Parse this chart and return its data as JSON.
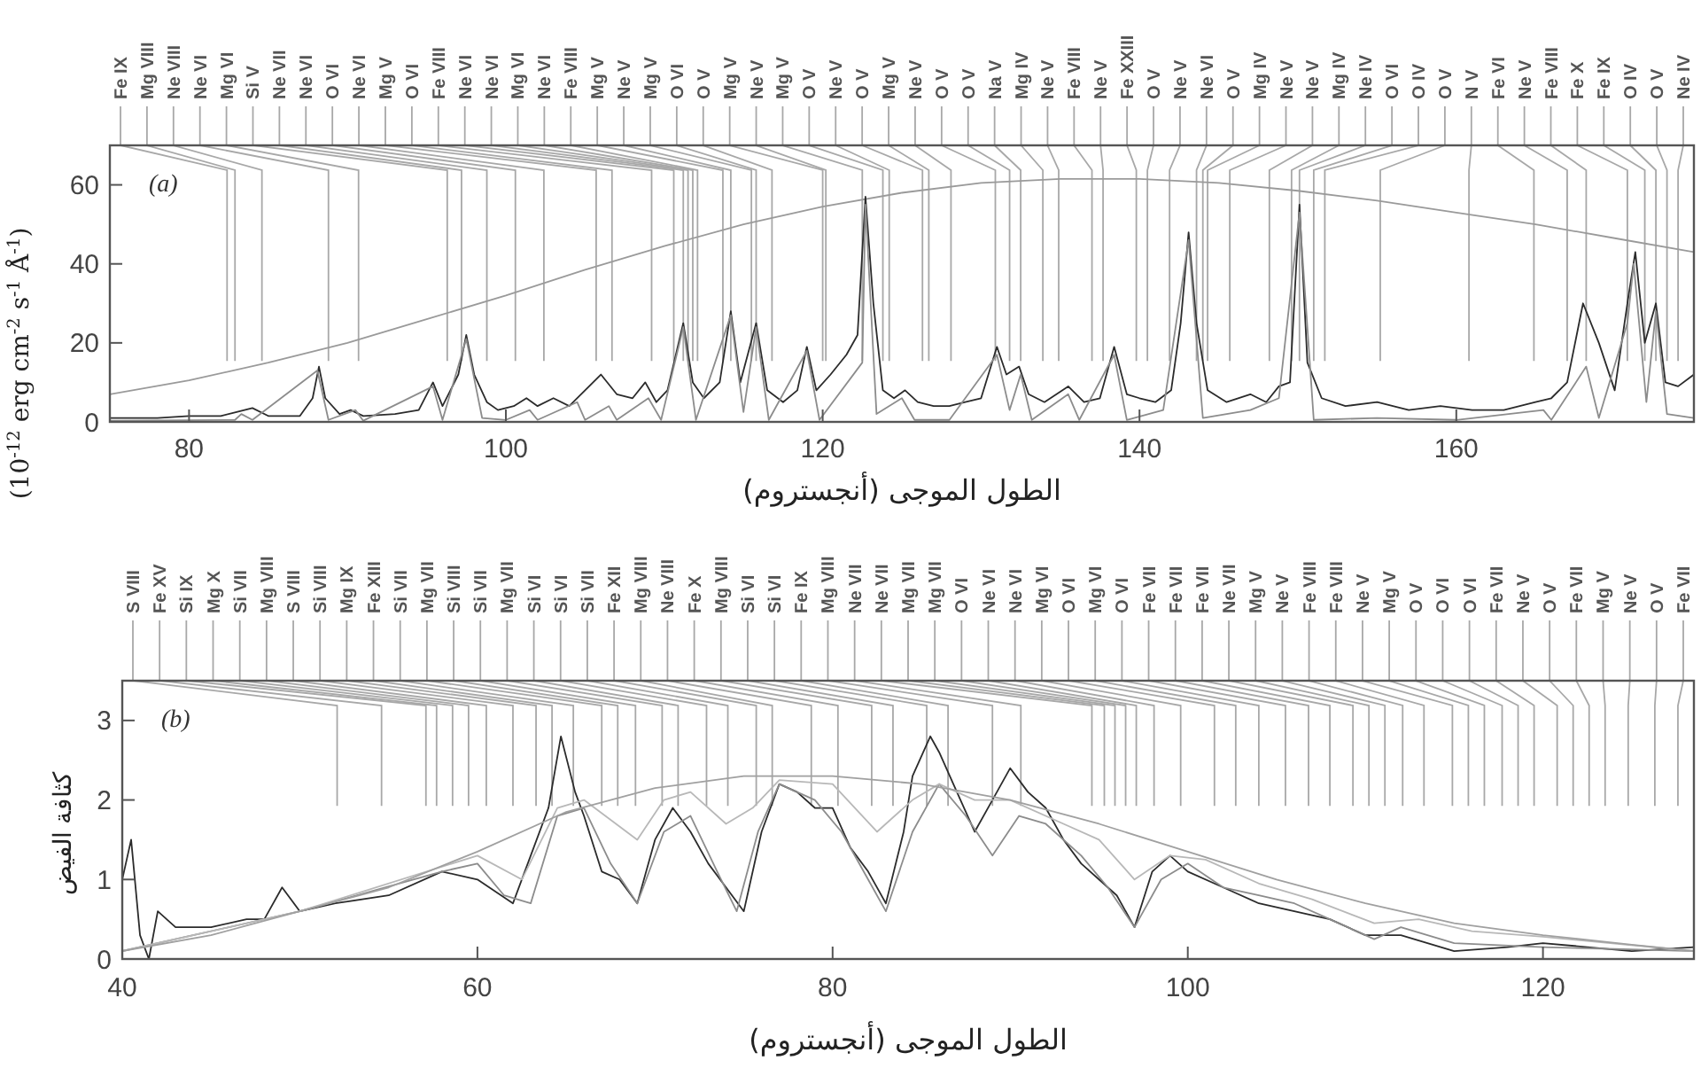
{
  "chart_data": [
    {
      "type": "line",
      "xlabel": "الطول الموجى (أنجستروم)",
      "ylabel": "(10$^{-12}$ erg cm$^{-2}$ s$^{-1}$ Å$^{-1}$)",
      "xlim": [
        75,
        175
      ],
      "xticks": [
        80,
        100,
        120,
        140,
        160
      ],
      "ylim": [
        0,
        70
      ],
      "yticks": [
        0,
        20,
        40,
        60
      ],
      "annotations": [
        "(a)"
      ],
      "series": [
        {
          "color": "#9a9a9a",
          "x": [
            75,
            80,
            85,
            90,
            95,
            100,
            105,
            110,
            115,
            120,
            125,
            130,
            135,
            140,
            145,
            150,
            155,
            160,
            165,
            170,
            175
          ],
          "values": [
            7,
            10.5,
            15,
            20,
            26,
            32,
            38.5,
            44.5,
            50,
            54.5,
            58,
            60.5,
            61.5,
            61.5,
            60.5,
            58.5,
            56,
            53,
            50,
            46.5,
            43
          ]
        },
        {
          "color": "#2b2b2b",
          "x": [
            75,
            78,
            80,
            82,
            83,
            84,
            85,
            87,
            87.8,
            88.2,
            88.6,
            89.5,
            90.2,
            91,
            93,
            94.5,
            95.4,
            96,
            97,
            97.5,
            98,
            98.8,
            99.5,
            100.5,
            101.3,
            102,
            103,
            104,
            105,
            106,
            107,
            108,
            108.8,
            109.5,
            110.2,
            111.2,
            111.8,
            112.5,
            113.5,
            114.2,
            114.8,
            115.8,
            116.5,
            117.5,
            118.4,
            119,
            119.6,
            120.5,
            121.5,
            122.2,
            122.7,
            123.2,
            123.8,
            124.5,
            125.2,
            126,
            127,
            128,
            129,
            130,
            131,
            131.6,
            132.4,
            133,
            134,
            135.5,
            136.5,
            137.5,
            138.4,
            139.2,
            140,
            141,
            142,
            142.6,
            143.1,
            143.6,
            144.3,
            145.5,
            147,
            148,
            148.8,
            149.5,
            150.1,
            150.6,
            151.5,
            153,
            155,
            157,
            159,
            161,
            163,
            165,
            166,
            167,
            168,
            169,
            170,
            170.8,
            171.3,
            171.9,
            172.6,
            173.2,
            174,
            175
          ],
          "values": [
            1,
            1,
            1.5,
            1.5,
            2.5,
            3.5,
            1.5,
            1.5,
            6,
            14,
            6,
            2,
            3,
            1.5,
            2,
            3,
            10,
            4,
            12,
            22,
            12,
            5,
            3,
            4,
            6,
            4,
            6,
            4,
            8,
            12,
            7,
            6,
            10,
            5,
            8,
            25,
            10,
            6,
            10,
            28,
            10,
            25,
            8,
            5,
            8,
            19,
            8,
            12,
            17,
            22,
            57,
            30,
            8,
            6,
            8,
            5,
            4,
            4,
            5,
            6,
            19,
            12,
            14,
            7,
            5,
            9,
            5,
            6,
            19,
            7,
            6,
            5,
            8,
            25,
            48,
            25,
            8,
            5,
            7,
            5,
            9,
            10,
            55,
            15,
            6,
            4,
            5,
            3,
            4,
            3,
            3,
            5,
            6,
            10,
            30,
            20,
            8,
            30,
            43,
            20,
            30,
            10,
            9,
            12
          ]
        },
        {
          "color": "#8c8c8c",
          "x": [
            75,
            82.9,
            83.3,
            84,
            88.1,
            88.8,
            90.5,
            91,
            95.4,
            96,
            97.5,
            98.5,
            100,
            101.5,
            102,
            104.5,
            105,
            106.5,
            107,
            109,
            109.8,
            111.2,
            112,
            114.2,
            115,
            115.8,
            116.6,
            119,
            119.8,
            122.5,
            122.7,
            123.4,
            125,
            125.8,
            128,
            131,
            131.8,
            132.5,
            133.2,
            135.5,
            136.2,
            138.4,
            139.2,
            141.5,
            143.1,
            144,
            147,
            148.8,
            150.1,
            151,
            155,
            160,
            165.5,
            166,
            168.2,
            169,
            170.8,
            171.2,
            172,
            172.6,
            173.3,
            175
          ],
          "values": [
            0.3,
            0.5,
            2,
            0.5,
            13,
            0.5,
            3,
            0.3,
            9,
            0.5,
            21,
            1,
            0.5,
            3,
            0.5,
            5,
            0.5,
            4,
            0.5,
            6,
            0.5,
            24,
            0.5,
            27,
            2.5,
            24,
            0.5,
            18,
            0.5,
            15,
            55,
            2,
            6,
            0.5,
            0.5,
            17,
            3,
            12,
            0.5,
            7,
            0.5,
            17,
            0.5,
            3,
            46,
            1,
            3,
            6,
            53,
            0.5,
            1,
            0.5,
            3,
            0.5,
            14,
            1,
            25,
            40,
            5,
            28,
            2,
            1
          ]
        }
      ],
      "ref_lines": [
        {
          "axis": "x",
          "value": 82.4,
          "label": "Fe IX"
        },
        {
          "axis": "x",
          "value": 82.9,
          "label": "Mg VIII"
        },
        {
          "axis": "x",
          "value": 84.6,
          "label": "Ne VIII"
        },
        {
          "axis": "x",
          "value": 88.8,
          "label": "Ne VI"
        },
        {
          "axis": "x",
          "value": 90.7,
          "label": "Mg VI"
        },
        {
          "axis": "x",
          "value": 96.3,
          "label": "Si V"
        },
        {
          "axis": "x",
          "value": 97.2,
          "label": "Ne VII"
        },
        {
          "axis": "x",
          "value": 98.8,
          "label": "Ne VI"
        },
        {
          "axis": "x",
          "value": 100.6,
          "label": "O VI"
        },
        {
          "axis": "x",
          "value": 102.4,
          "label": "Ne VI"
        },
        {
          "axis": "x",
          "value": 105.7,
          "label": "Mg V"
        },
        {
          "axis": "x",
          "value": 106.7,
          "label": "O VI"
        },
        {
          "axis": "x",
          "value": 109.2,
          "label": "Fe VIII"
        },
        {
          "axis": "x",
          "value": 110.6,
          "label": "Ne VI"
        },
        {
          "axis": "x",
          "value": 111.2,
          "label": "Ne VI"
        },
        {
          "axis": "x",
          "value": 111.5,
          "label": "Mg VI"
        },
        {
          "axis": "x",
          "value": 111.8,
          "label": "Ne VI"
        },
        {
          "axis": "x",
          "value": 112.1,
          "label": "Fe VIII"
        },
        {
          "axis": "x",
          "value": 113.7,
          "label": "Mg V"
        },
        {
          "axis": "x",
          "value": 114.2,
          "label": "Ne V"
        },
        {
          "axis": "x",
          "value": 115.5,
          "label": "Mg V"
        },
        {
          "axis": "x",
          "value": 115.8,
          "label": "O VI"
        },
        {
          "axis": "x",
          "value": 116.8,
          "label": "O V"
        },
        {
          "axis": "x",
          "value": 120.0,
          "label": "Mg V"
        },
        {
          "axis": "x",
          "value": 120.2,
          "label": "Ne V"
        },
        {
          "axis": "x",
          "value": 122.5,
          "label": "Mg V"
        },
        {
          "axis": "x",
          "value": 123.8,
          "label": "O V"
        },
        {
          "axis": "x",
          "value": 124.2,
          "label": "Ne V"
        },
        {
          "axis": "x",
          "value": 126.3,
          "label": "O V"
        },
        {
          "axis": "x",
          "value": 126.7,
          "label": "Mg V"
        },
        {
          "axis": "x",
          "value": 128.1,
          "label": "Ne V"
        },
        {
          "axis": "x",
          "value": 130.9,
          "label": "O V"
        },
        {
          "axis": "x",
          "value": 131.8,
          "label": "O V"
        },
        {
          "axis": "x",
          "value": 132.5,
          "label": "Na V"
        },
        {
          "axis": "x",
          "value": 133.9,
          "label": "Mg IV"
        },
        {
          "axis": "x",
          "value": 134.9,
          "label": "Ne V"
        },
        {
          "axis": "x",
          "value": 137.0,
          "label": "Fe VIII"
        },
        {
          "axis": "x",
          "value": 137.7,
          "label": "Ne V"
        },
        {
          "axis": "x",
          "value": 139.8,
          "label": "Fe XXIII"
        },
        {
          "axis": "x",
          "value": 140.5,
          "label": "O V"
        },
        {
          "axis": "x",
          "value": 141.9,
          "label": "Ne V"
        },
        {
          "axis": "x",
          "value": 143.6,
          "label": "Ne VI"
        },
        {
          "axis": "x",
          "value": 144.0,
          "label": "O V"
        },
        {
          "axis": "x",
          "value": 144.3,
          "label": "Mg IV"
        },
        {
          "axis": "x",
          "value": 145.7,
          "label": "Ne V"
        },
        {
          "axis": "x",
          "value": 148.2,
          "label": "Ne V"
        },
        {
          "axis": "x",
          "value": 149.6,
          "label": "Mg IV"
        },
        {
          "axis": "x",
          "value": 150.1,
          "label": "Ne IV"
        },
        {
          "axis": "x",
          "value": 151.0,
          "label": "O VI"
        },
        {
          "axis": "x",
          "value": 151.7,
          "label": "O IV"
        },
        {
          "axis": "x",
          "value": 155.2,
          "label": "O V"
        },
        {
          "axis": "x",
          "value": 160.8,
          "label": "N V"
        },
        {
          "axis": "x",
          "value": 164.9,
          "label": "Fe VI"
        },
        {
          "axis": "x",
          "value": 167.0,
          "label": "Ne V"
        },
        {
          "axis": "x",
          "value": 168.2,
          "label": "Fe VIII"
        },
        {
          "axis": "x",
          "value": 170.8,
          "label": "Fe X"
        },
        {
          "axis": "x",
          "value": 171.9,
          "label": "Fe IX"
        },
        {
          "axis": "x",
          "value": 172.6,
          "label": "O IV"
        },
        {
          "axis": "x",
          "value": 173.3,
          "label": "O V"
        },
        {
          "axis": "x",
          "value": 174.0,
          "label": "Ne IV"
        }
      ]
    },
    {
      "type": "line",
      "xlabel": "الطول الموجى (أنجستروم)",
      "ylabel": "كثافة الفيض",
      "xlim": [
        40,
        128.5
      ],
      "xticks": [
        40,
        60,
        80,
        100,
        120
      ],
      "ylim": [
        0,
        3.5
      ],
      "yticks": [
        0,
        1,
        2,
        3
      ],
      "annotations": [
        "(b)"
      ],
      "series": [
        {
          "color": "#2b2b2b",
          "x": [
            40,
            40.5,
            41,
            41.5,
            42,
            43,
            45,
            47,
            48,
            49,
            50,
            52,
            55,
            58,
            60,
            62,
            63,
            64,
            64.7,
            65.5,
            66,
            67,
            68,
            69,
            70,
            71,
            72,
            73,
            74,
            75,
            76,
            77,
            78,
            79,
            80,
            81,
            82,
            83,
            84,
            84.5,
            85.5,
            86,
            87,
            88,
            89,
            90,
            91,
            92,
            93,
            94,
            95,
            96,
            97,
            98,
            99,
            100,
            102,
            104,
            106,
            108,
            110,
            112,
            115,
            118,
            120,
            125,
            128.5
          ],
          "values": [
            1,
            1.5,
            0.3,
            0,
            0.6,
            0.4,
            0.4,
            0.5,
            0.5,
            0.9,
            0.6,
            0.7,
            0.8,
            1.1,
            1,
            0.7,
            1.3,
            1.9,
            2.8,
            2.1,
            1.8,
            1.1,
            1,
            0.7,
            1.5,
            1.9,
            1.6,
            1.2,
            0.9,
            0.6,
            1.6,
            2.2,
            2.1,
            1.9,
            1.9,
            1.4,
            1.1,
            0.7,
            1.6,
            2.3,
            2.8,
            2.6,
            2.1,
            1.6,
            2,
            2.4,
            2.1,
            1.9,
            1.5,
            1.2,
            1,
            0.8,
            0.4,
            1.1,
            1.3,
            1.1,
            0.9,
            0.7,
            0.6,
            0.5,
            0.3,
            0.3,
            0.1,
            0.15,
            0.2,
            0.1,
            0.15
          ]
        },
        {
          "color": "#8c8c8c",
          "x": [
            40,
            50,
            58,
            60,
            61.5,
            63,
            64.5,
            66,
            67.5,
            69,
            70.5,
            72,
            73.5,
            74.6,
            75.8,
            77,
            79,
            80.5,
            82,
            83,
            84.5,
            86,
            87.5,
            89,
            90.5,
            92,
            94,
            95.5,
            97,
            98.5,
            100,
            102,
            104,
            106,
            108,
            110.5,
            112,
            115,
            120,
            128.5
          ],
          "values": [
            0.1,
            0.6,
            1.1,
            1.2,
            0.8,
            0.7,
            1.8,
            1.9,
            1.2,
            0.7,
            1.6,
            1.8,
            1.1,
            0.6,
            1.6,
            2.2,
            2,
            1.6,
            1,
            0.6,
            1.6,
            2.2,
            1.8,
            1.3,
            1.8,
            1.7,
            1.3,
            0.9,
            0.4,
            1,
            1.2,
            0.9,
            0.8,
            0.7,
            0.5,
            0.25,
            0.4,
            0.2,
            0.15,
            0.1
          ]
        },
        {
          "color": "#b8b8b8",
          "x": [
            40,
            50,
            60,
            62.5,
            64.5,
            66,
            67.8,
            69,
            70.5,
            72,
            74,
            75.5,
            77,
            80,
            82.5,
            84.5,
            86,
            88,
            90,
            93,
            95,
            97,
            99,
            101,
            104,
            107,
            110.5,
            113,
            116,
            120,
            128.5
          ],
          "values": [
            0.1,
            0.6,
            1.3,
            1,
            1.9,
            2,
            1.7,
            1.5,
            2,
            2.1,
            1.7,
            1.9,
            2.25,
            2.2,
            1.6,
            2,
            2.2,
            2,
            2,
            1.7,
            1.5,
            1,
            1.3,
            1.25,
            0.95,
            0.75,
            0.45,
            0.5,
            0.35,
            0.28,
            0.1
          ]
        },
        {
          "color": "#a0a0a0",
          "x": [
            40,
            45,
            50,
            55,
            60,
            65,
            70,
            75,
            80,
            85,
            90,
            95,
            100,
            105,
            110,
            115,
            120,
            125,
            128.5
          ],
          "values": [
            0.1,
            0.3,
            0.6,
            0.9,
            1.35,
            1.85,
            2.15,
            2.3,
            2.3,
            2.2,
            2,
            1.7,
            1.35,
            1,
            0.7,
            0.45,
            0.3,
            0.18,
            0.1
          ]
        }
      ],
      "ref_lines": [
        {
          "axis": "x",
          "value": 52.1,
          "label": "S VIII"
        },
        {
          "axis": "x",
          "value": 54.6,
          "label": "Fe XV"
        },
        {
          "axis": "x",
          "value": 57.1,
          "label": "Si IX"
        },
        {
          "axis": "x",
          "value": 57.7,
          "label": "Mg X"
        },
        {
          "axis": "x",
          "value": 58.6,
          "label": "Si VII"
        },
        {
          "axis": "x",
          "value": 59.5,
          "label": "Mg VIII"
        },
        {
          "axis": "x",
          "value": 60.5,
          "label": "S VIII"
        },
        {
          "axis": "x",
          "value": 62.0,
          "label": "Si VIII"
        },
        {
          "axis": "x",
          "value": 63.3,
          "label": "Mg IX"
        },
        {
          "axis": "x",
          "value": 64.2,
          "label": "Fe XIII"
        },
        {
          "axis": "x",
          "value": 65.4,
          "label": "Si VII"
        },
        {
          "axis": "x",
          "value": 67.0,
          "label": "Mg VII"
        },
        {
          "axis": "x",
          "value": 67.9,
          "label": "Si VIII"
        },
        {
          "axis": "x",
          "value": 68.9,
          "label": "Si VII"
        },
        {
          "axis": "x",
          "value": 70.4,
          "label": "Mg VII"
        },
        {
          "axis": "x",
          "value": 71.3,
          "label": "Si VI"
        },
        {
          "axis": "x",
          "value": 72.9,
          "label": "Si VI"
        },
        {
          "axis": "x",
          "value": 74.1,
          "label": "Si VII"
        },
        {
          "axis": "x",
          "value": 75.7,
          "label": "Fe XII"
        },
        {
          "axis": "x",
          "value": 76.6,
          "label": "Mg VIII"
        },
        {
          "axis": "x",
          "value": 78.8,
          "label": "Ne VIII"
        },
        {
          "axis": "x",
          "value": 80.3,
          "label": "Fe X"
        },
        {
          "axis": "x",
          "value": 82.2,
          "label": "Mg VIII"
        },
        {
          "axis": "x",
          "value": 83.4,
          "label": "Si VI"
        },
        {
          "axis": "x",
          "value": 85.3,
          "label": "Si VI"
        },
        {
          "axis": "x",
          "value": 86.5,
          "label": "Fe IX"
        },
        {
          "axis": "x",
          "value": 89.0,
          "label": "Mg VIII"
        },
        {
          "axis": "x",
          "value": 90.6,
          "label": "Ne VII"
        },
        {
          "axis": "x",
          "value": 94.6,
          "label": "Ne VII"
        },
        {
          "axis": "x",
          "value": 95.3,
          "label": "Mg VII"
        },
        {
          "axis": "x",
          "value": 95.9,
          "label": "Mg VII"
        },
        {
          "axis": "x",
          "value": 96.5,
          "label": "O VI"
        },
        {
          "axis": "x",
          "value": 97.1,
          "label": "Ne VI"
        },
        {
          "axis": "x",
          "value": 98.1,
          "label": "Ne VI"
        },
        {
          "axis": "x",
          "value": 99.6,
          "label": "Mg VI"
        },
        {
          "axis": "x",
          "value": 101.5,
          "label": "O VI"
        },
        {
          "axis": "x",
          "value": 102.7,
          "label": "Mg VI"
        },
        {
          "axis": "x",
          "value": 104.0,
          "label": "O VI"
        },
        {
          "axis": "x",
          "value": 105.5,
          "label": "Fe VII"
        },
        {
          "axis": "x",
          "value": 106.8,
          "label": "Fe VII"
        },
        {
          "axis": "x",
          "value": 108.0,
          "label": "Fe VII"
        },
        {
          "axis": "x",
          "value": 109.3,
          "label": "Ne VII"
        },
        {
          "axis": "x",
          "value": 110.2,
          "label": "Mg V"
        },
        {
          "axis": "x",
          "value": 111.1,
          "label": "Ne V"
        },
        {
          "axis": "x",
          "value": 112.1,
          "label": "Fe VIII"
        },
        {
          "axis": "x",
          "value": 113.3,
          "label": "Fe VIII"
        },
        {
          "axis": "x",
          "value": 114.9,
          "label": "Ne V"
        },
        {
          "axis": "x",
          "value": 115.8,
          "label": "Mg V"
        },
        {
          "axis": "x",
          "value": 116.7,
          "label": "O V"
        },
        {
          "axis": "x",
          "value": 117.7,
          "label": "O VI"
        },
        {
          "axis": "x",
          "value": 118.6,
          "label": "O VI"
        },
        {
          "axis": "x",
          "value": 119.5,
          "label": "Fe VII"
        },
        {
          "axis": "x",
          "value": 120.8,
          "label": "Ne V"
        },
        {
          "axis": "x",
          "value": 121.7,
          "label": "O V"
        },
        {
          "axis": "x",
          "value": 122.6,
          "label": "Fe VII"
        },
        {
          "axis": "x",
          "value": 123.5,
          "label": "Mg V"
        },
        {
          "axis": "x",
          "value": 124.8,
          "label": "Ne V"
        },
        {
          "axis": "x",
          "value": 126.3,
          "label": "O V"
        },
        {
          "axis": "x",
          "value": 127.6,
          "label": "Fe VII"
        }
      ]
    }
  ]
}
